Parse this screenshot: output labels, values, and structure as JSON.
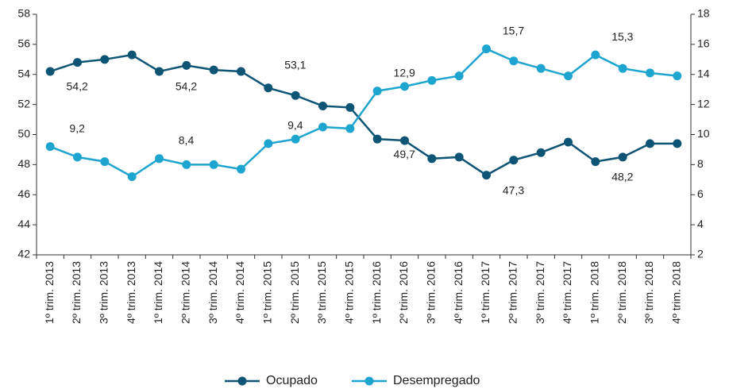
{
  "chart_data": {
    "type": "line",
    "categories": [
      "1º trim. 2013",
      "2º trim. 2013",
      "3º trim. 2013",
      "4º trim. 2013",
      "1º trim. 2014",
      "2º trim. 2014",
      "3º trim. 2014",
      "4º trim. 2014",
      "1º trim. 2015",
      "2º trim. 2015",
      "3º trim. 2015",
      "4º trim. 2015",
      "1º trim. 2016",
      "2º trim. 2016",
      "3º trim. 2016",
      "4º trim. 2016",
      "1º trim. 2017",
      "2º trim. 2017",
      "3º trim. 2017",
      "4º trim. 2017",
      "1º trim. 2018",
      "2º trim. 2018",
      "3º trim. 2018",
      "4º trim. 2018"
    ],
    "series": [
      {
        "name": "Ocupado",
        "color": "#0e5475",
        "axis": "y",
        "values": [
          54.2,
          54.8,
          55.0,
          55.3,
          54.2,
          54.6,
          54.3,
          54.2,
          53.1,
          52.6,
          51.9,
          51.8,
          49.7,
          49.6,
          48.4,
          48.5,
          47.3,
          48.3,
          48.8,
          49.5,
          48.2,
          48.5,
          49.4,
          49.4
        ],
        "value_labels": [
          "54,2",
          null,
          null,
          null,
          "54,2",
          null,
          null,
          null,
          "53,1",
          null,
          null,
          null,
          "49,7",
          null,
          null,
          null,
          "47,3",
          null,
          null,
          null,
          "48,2",
          null,
          null,
          null
        ]
      },
      {
        "name": "Desempregado",
        "color": "#1ea5cf",
        "axis": "y2",
        "values": [
          9.2,
          8.5,
          8.2,
          7.2,
          8.4,
          8.0,
          8.0,
          7.7,
          9.4,
          9.7,
          10.5,
          10.4,
          12.9,
          13.2,
          13.6,
          13.9,
          15.7,
          14.9,
          14.4,
          13.9,
          15.3,
          14.4,
          14.1,
          13.9
        ],
        "value_labels": [
          "9,2",
          null,
          null,
          null,
          "8,4",
          null,
          null,
          null,
          "9,4",
          null,
          null,
          null,
          "12,9",
          null,
          null,
          null,
          "15,7",
          null,
          null,
          null,
          "15,3",
          null,
          null,
          null
        ]
      }
    ],
    "ylim": [
      42,
      58
    ],
    "yticks": [
      42,
      44,
      46,
      48,
      50,
      52,
      54,
      56,
      58
    ],
    "y2lim": [
      2,
      18
    ],
    "y2ticks": [
      2,
      4,
      6,
      8,
      10,
      12,
      14,
      16,
      18
    ]
  }
}
